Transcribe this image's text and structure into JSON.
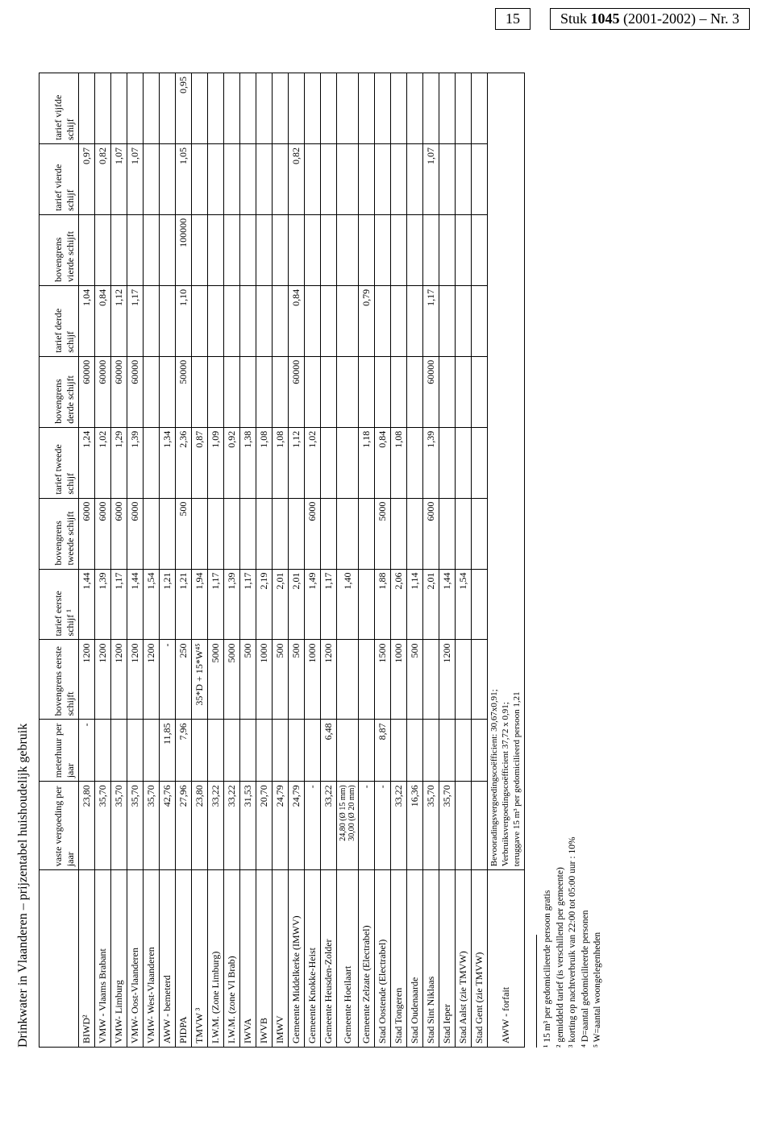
{
  "header": {
    "page_number": "15",
    "doc_ref_prefix": "Stuk ",
    "doc_ref_bold": "1045",
    "doc_ref_suffix": " (2001-2002) – Nr. 3"
  },
  "title": "Drinkwater in Vlaanderen – prijzentabel huishoudelijk gebruik",
  "columns": [
    "",
    "vaste vergoeding per jaar",
    "meterhuur per jaar",
    "bovengrens eerste schijft",
    "tarief eerste schijf ¹",
    "bovengrens tweede schijft",
    "tarief tweede schijf",
    "bovengrens derde schijft",
    "tarief derde schijf",
    "bovengrens vierde schijft",
    "tarief vierde schijf",
    "tarief vijfde schijf"
  ],
  "rows": [
    {
      "name": "BIWD²",
      "vaste": "23,80",
      "meter": "-",
      "b1": "1200",
      "t1": "1,44",
      "b2": "6000",
      "t2": "1,24",
      "b3": "60000",
      "t3": "1,04",
      "b4": "",
      "t4": "0,97",
      "t5": ""
    },
    {
      "name": "VMW - Vlaams Brabant",
      "vaste": "35,70",
      "meter": "",
      "b1": "1200",
      "t1": "1,39",
      "b2": "6000",
      "t2": "1,02",
      "b3": "60000",
      "t3": "0,84",
      "b4": "",
      "t4": "0,82",
      "t5": ""
    },
    {
      "name": "VMW- Limburg",
      "vaste": "35,70",
      "meter": "",
      "b1": "1200",
      "t1": "1,17",
      "b2": "6000",
      "t2": "1,29",
      "b3": "60000",
      "t3": "1,12",
      "b4": "",
      "t4": "1,07",
      "t5": ""
    },
    {
      "name": "VMW- Oost-Vlaanderen",
      "vaste": "35,70",
      "meter": "",
      "b1": "1200",
      "t1": "1,44",
      "b2": "6000",
      "t2": "1,39",
      "b3": "60000",
      "t3": "1,17",
      "b4": "",
      "t4": "1,07",
      "t5": ""
    },
    {
      "name": "VMW- West-Vlaanderen",
      "vaste": "35,70",
      "meter": "",
      "b1": "1200",
      "t1": "1,54",
      "b2": "",
      "t2": "",
      "b3": "",
      "t3": "",
      "b4": "",
      "t4": "",
      "t5": ""
    },
    {
      "name": "AWW - bemeterd",
      "vaste": "42,76",
      "meter": "11,85",
      "b1": "-",
      "t1": "1,21",
      "b2": "",
      "t2": "1,34",
      "b3": "",
      "t3": "",
      "b4": "",
      "t4": "",
      "t5": ""
    },
    {
      "name": "PIDPA",
      "vaste": "27,96",
      "meter": "7,96",
      "b1": "250",
      "t1": "1,21",
      "b2": "500",
      "t2": "2,36",
      "b3": "50000",
      "t3": "1,10",
      "b4": "100000",
      "t4": "1,05",
      "t5": "0,95"
    },
    {
      "name": "TMVW ³",
      "vaste": "23,80",
      "meter": "",
      "b1": "35*D + 15*W⁴⁵",
      "t1": "1,94",
      "b2": "",
      "t2": "0,87",
      "b3": "",
      "t3": "",
      "b4": "",
      "t4": "",
      "t5": ""
    },
    {
      "name": "I.W.M. (Zone Limburg)",
      "vaste": "33,22",
      "meter": "",
      "b1": "5000",
      "t1": "1,17",
      "b2": "",
      "t2": "1,09",
      "b3": "",
      "t3": "",
      "b4": "",
      "t4": "",
      "t5": ""
    },
    {
      "name": "I.W.M. (zone Vl Brab)",
      "vaste": "33,22",
      "meter": "",
      "b1": "5000",
      "t1": "1,39",
      "b2": "",
      "t2": "0,92",
      "b3": "",
      "t3": "",
      "b4": "",
      "t4": "",
      "t5": ""
    },
    {
      "name": "IWVA",
      "vaste": "31,53",
      "meter": "",
      "b1": "500",
      "t1": "1,17",
      "b2": "",
      "t2": "1,38",
      "b3": "",
      "t3": "",
      "b4": "",
      "t4": "",
      "t5": ""
    },
    {
      "name": "IWVB",
      "vaste": "20,70",
      "meter": "",
      "b1": "1000",
      "t1": "2,19",
      "b2": "",
      "t2": "1,08",
      "b3": "",
      "t3": "",
      "b4": "",
      "t4": "",
      "t5": ""
    },
    {
      "name": "IMWV",
      "vaste": "24,79",
      "meter": "",
      "b1": "500",
      "t1": "2,01",
      "b2": "",
      "t2": "1,08",
      "b3": "",
      "t3": "",
      "b4": "",
      "t4": "",
      "t5": ""
    },
    {
      "name": "Gemeente Middelkerke (IMWV)",
      "vaste": "24,79",
      "meter": "",
      "b1": "500",
      "t1": "2,01",
      "b2": "",
      "t2": "1,12",
      "b3": "60000",
      "t3": "0,84",
      "b4": "",
      "t4": "0,82",
      "t5": ""
    },
    {
      "name": "Gemeente Knokke-Heist",
      "vaste": "-",
      "meter": "",
      "b1": "1000",
      "t1": "1,49",
      "b2": "6000",
      "t2": "1,02",
      "b3": "",
      "t3": "",
      "b4": "",
      "t4": "",
      "t5": ""
    },
    {
      "name": "Gemeente Heusden-Zolder",
      "vaste": "33,22",
      "meter": "6,48",
      "b1": "1200",
      "t1": "1,17",
      "b2": "",
      "t2": "",
      "b3": "",
      "t3": "",
      "b4": "",
      "t4": "",
      "t5": ""
    },
    {
      "name": "Gemeente Hoeilaart",
      "vaste": "24,80 (Ø 15 mm)\n30,00 (Ø 20 mm)",
      "meter": "",
      "b1": "",
      "t1": "1,40",
      "b2": "",
      "t2": "",
      "b3": "",
      "t3": "",
      "b4": "",
      "t4": "",
      "t5": ""
    },
    {
      "name": "Gemeente Zelzate (Electrabel)",
      "vaste": "-",
      "meter": "",
      "b1": "",
      "t1": "",
      "b2": "",
      "t2": "1,18",
      "b3": "",
      "t3": "0,79",
      "b4": "",
      "t4": "",
      "t5": ""
    },
    {
      "name": "Stad Oostende (Electrabel)",
      "vaste": "-",
      "meter": "8,87",
      "b1": "1500",
      "t1": "1,88",
      "b2": "5000",
      "t2": "0,84",
      "b3": "",
      "t3": "",
      "b4": "",
      "t4": "",
      "t5": ""
    },
    {
      "name": "Stad Tongeren",
      "vaste": "33,22",
      "meter": "",
      "b1": "1000",
      "t1": "2,06",
      "b2": "",
      "t2": "1,08",
      "b3": "",
      "t3": "",
      "b4": "",
      "t4": "",
      "t5": ""
    },
    {
      "name": "Stad Oudenaarde",
      "vaste": "16,36",
      "meter": "",
      "b1": "500",
      "t1": "1,14",
      "b2": "",
      "t2": "",
      "b3": "",
      "t3": "",
      "b4": "",
      "t4": "",
      "t5": ""
    },
    {
      "name": "Stad Sint Niklaas",
      "vaste": "35,70",
      "meter": "",
      "b1": "",
      "t1": "2,01",
      "b2": "6000",
      "t2": "1,39",
      "b3": "60000",
      "t3": "1,17",
      "b4": "",
      "t4": "1,07",
      "t5": ""
    },
    {
      "name": "Stad Ieper",
      "vaste": "35,70",
      "meter": "",
      "b1": "1200",
      "t1": "1,44",
      "b2": "",
      "t2": "",
      "b3": "",
      "t3": "",
      "b4": "",
      "t4": "",
      "t5": ""
    },
    {
      "name": "Stad Aalst (zie TMVW)",
      "vaste": "",
      "meter": "",
      "b1": "",
      "t1": "1,54",
      "b2": "",
      "t2": "",
      "b3": "",
      "t3": "",
      "b4": "",
      "t4": "",
      "t5": ""
    },
    {
      "name": "Stad Gent (zie TMVW)",
      "vaste": "",
      "meter": "",
      "b1": "",
      "t1": "",
      "b2": "",
      "t2": "",
      "b3": "",
      "t3": "",
      "b4": "",
      "t4": "",
      "t5": ""
    }
  ],
  "aww_forfait": {
    "label": "AWW - forfait",
    "lines": [
      "Bevooradingsvergoedingscoëfficient: 30,67x0,91;",
      "Verbruiksvergoedingscoëfficient 37,72 x 0,91;",
      "teruggave 15 m³ per gedomicilieerd persoon 1,21"
    ]
  },
  "footnotes": [
    "¹ 15 m³ per gedomicilieerde persoon gratis",
    "² gemiddeld tarief (is verschillend per gemeente)",
    "³ korting op nachtverbruik van 22:00 tot 05:00 uur : 10%",
    "⁴ D=aantal gedomicilieerde personen",
    "⁵ W=aantal woongelegenheden"
  ]
}
